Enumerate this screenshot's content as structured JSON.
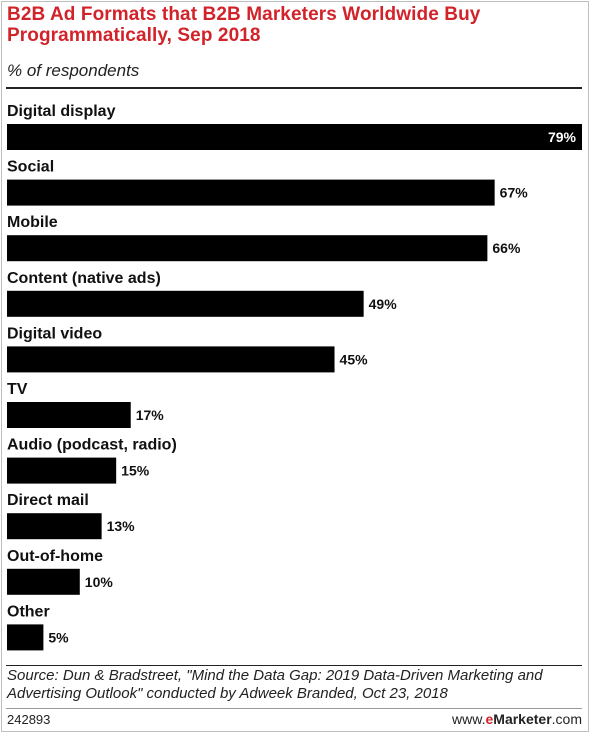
{
  "header": {
    "title": "B2B Ad Formats that B2B Marketers Worldwide Buy Programmatically, Sep 2018",
    "subtitle": "% of respondents"
  },
  "chart_data": {
    "type": "bar",
    "orientation": "horizontal",
    "title": "B2B Ad Formats that B2B Marketers Worldwide Buy Programmatically, Sep 2018",
    "subtitle": "% of respondents",
    "categories": [
      "Digital display",
      "Social",
      "Mobile",
      "Content (native ads)",
      "Digital video",
      "TV",
      "Audio (podcast, radio)",
      "Direct mail",
      "Out-of-home",
      "Other"
    ],
    "values": [
      79,
      67,
      66,
      49,
      45,
      17,
      15,
      13,
      10,
      5
    ],
    "value_labels": [
      "79%",
      "67%",
      "66%",
      "49%",
      "45%",
      "17%",
      "15%",
      "13%",
      "10%",
      "5%"
    ],
    "unit": "%",
    "xlim": [
      0,
      79
    ],
    "bar_color": "#000000",
    "grid": false,
    "legend": "none"
  },
  "footer": {
    "source": "Source: Dun & Bradstreet, \"Mind the Data Gap: 2019 Data-Driven Marketing and Advertising Outlook\" conducted by Adweek Branded, Oct 23, 2018",
    "chart_id": "242893",
    "brand_prefix": "www.",
    "brand_e": "e",
    "brand_name": "Marketer",
    "brand_suffix": ".com"
  },
  "colors": {
    "title": "#d2232a",
    "bars": "#000000",
    "text": "#111111"
  }
}
